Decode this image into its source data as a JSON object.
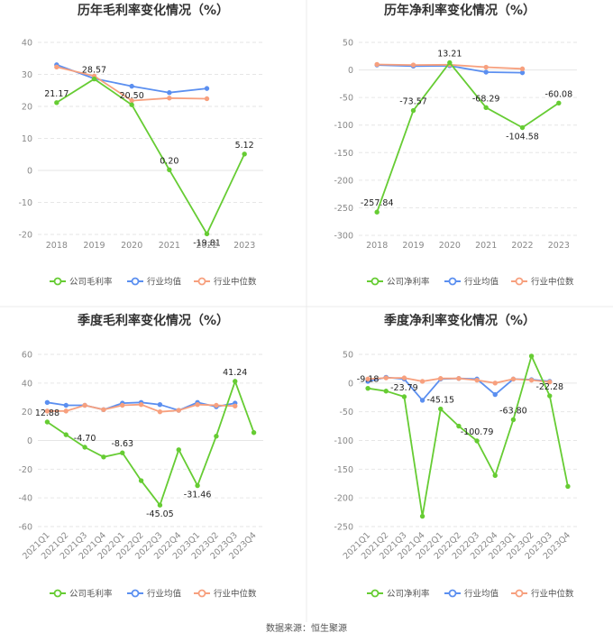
{
  "colors": {
    "company": "#66cc33",
    "avg": "#5b8ff0",
    "median": "#f7a07e",
    "grid": "#e6e6e6",
    "divider": "#ebebeb"
  },
  "legend": {
    "company_gross": "公司毛利率",
    "company_net": "公司净利率",
    "avg": "行业均值",
    "median": "行业中位数"
  },
  "source": "数据来源：恒生聚源",
  "chart_data": [
    {
      "id": "annual-gross",
      "type": "line",
      "title": "历年毛利率变化情况（%）",
      "categories": [
        "2018",
        "2019",
        "2020",
        "2021",
        "2022",
        "2023"
      ],
      "ylim": [
        -20,
        40
      ],
      "yticks": [
        40,
        30,
        20,
        10,
        0,
        -10,
        -20
      ],
      "series": [
        {
          "name": "公司毛利率",
          "values": [
            21.17,
            28.57,
            20.5,
            0.2,
            -19.81,
            5.12
          ],
          "labels": [
            "21.17",
            "28.57",
            "20.50",
            "0.20",
            "-19.81",
            "5.12"
          ]
        },
        {
          "name": "行业均值",
          "values": [
            33.0,
            28.7,
            26.3,
            24.3,
            25.6,
            null
          ]
        },
        {
          "name": "行业中位数",
          "values": [
            32.3,
            29.5,
            21.8,
            22.6,
            22.4,
            null
          ]
        }
      ]
    },
    {
      "id": "annual-net",
      "type": "line",
      "title": "历年净利率变化情况（%）",
      "categories": [
        "2018",
        "2019",
        "2020",
        "2021",
        "2022",
        "2023"
      ],
      "ylim": [
        -300,
        50
      ],
      "yticks": [
        50,
        0,
        -50,
        -100,
        -150,
        -200,
        -250,
        -300
      ],
      "series": [
        {
          "name": "公司净利率",
          "values": [
            -257.84,
            -73.57,
            13.21,
            -68.29,
            -104.58,
            -60.08
          ],
          "labels": [
            "-257.84",
            "-73.57",
            "13.21",
            "-68.29",
            "-104.58",
            "-60.08"
          ]
        },
        {
          "name": "行业均值",
          "values": [
            9.0,
            7.0,
            7.5,
            -4.0,
            -5.0,
            null
          ]
        },
        {
          "name": "行业中位数",
          "values": [
            10.0,
            9.0,
            9.5,
            5.0,
            2.0,
            null
          ]
        }
      ]
    },
    {
      "id": "quarterly-gross",
      "type": "line",
      "title": "季度毛利率变化情况（%）",
      "categories": [
        "2021Q1",
        "2021Q2",
        "2021Q3",
        "2021Q4",
        "2022Q1",
        "2022Q2",
        "2022Q3",
        "2022Q4",
        "2023Q1",
        "2023Q2",
        "2023Q3",
        "2023Q4"
      ],
      "ylim": [
        -60,
        60
      ],
      "yticks": [
        60,
        40,
        20,
        0,
        -20,
        -40,
        -60
      ],
      "series": [
        {
          "name": "公司毛利率",
          "values": [
            12.88,
            4.0,
            -4.7,
            -11.5,
            -8.63,
            -28.0,
            -45.05,
            -6.5,
            -31.46,
            3.0,
            41.24,
            5.5
          ],
          "labels": [
            "12.88",
            "",
            "-4.70",
            "",
            "-8.63",
            "",
            "-45.05",
            "",
            "-31.46",
            "",
            "41.24",
            ""
          ]
        },
        {
          "name": "行业均值",
          "values": [
            26.5,
            24.5,
            24.5,
            21.5,
            26.0,
            26.5,
            25.0,
            21.0,
            26.5,
            23.5,
            26.0,
            null
          ]
        },
        {
          "name": "行业中位数",
          "values": [
            20.5,
            20.5,
            24.5,
            21.5,
            24.5,
            25.0,
            20.0,
            21.0,
            25.0,
            24.5,
            24.0,
            null
          ]
        }
      ]
    },
    {
      "id": "quarterly-net",
      "type": "line",
      "title": "季度净利率变化情况（%）",
      "categories": [
        "2021Q1",
        "2021Q2",
        "2021Q3",
        "2021Q4",
        "2022Q1",
        "2022Q2",
        "2022Q3",
        "2022Q4",
        "2023Q1",
        "2023Q2",
        "2023Q3",
        "2023Q4"
      ],
      "ylim": [
        -250,
        50
      ],
      "yticks": [
        50,
        0,
        -50,
        -100,
        -150,
        -200,
        -250
      ],
      "series": [
        {
          "name": "公司净利率",
          "values": [
            -9.18,
            -14.0,
            -23.79,
            -232.0,
            -45.15,
            -75.0,
            -100.79,
            -161.0,
            -63.8,
            47.0,
            -22.28,
            -180.0
          ],
          "labels": [
            "-9.18",
            "",
            "-23.79",
            "",
            "-45.15",
            "",
            "-100.79",
            "",
            "-63.80",
            "",
            "-22.28",
            ""
          ]
        },
        {
          "name": "行业均值",
          "values": [
            3.0,
            10.0,
            7.0,
            -30.0,
            7.0,
            8.0,
            7.0,
            -20.0,
            7.0,
            6.0,
            3.0,
            null
          ]
        },
        {
          "name": "行业中位数",
          "values": [
            7.0,
            9.0,
            9.0,
            3.0,
            8.0,
            8.0,
            5.0,
            0.0,
            7.0,
            5.0,
            2.0,
            null
          ]
        }
      ]
    }
  ]
}
